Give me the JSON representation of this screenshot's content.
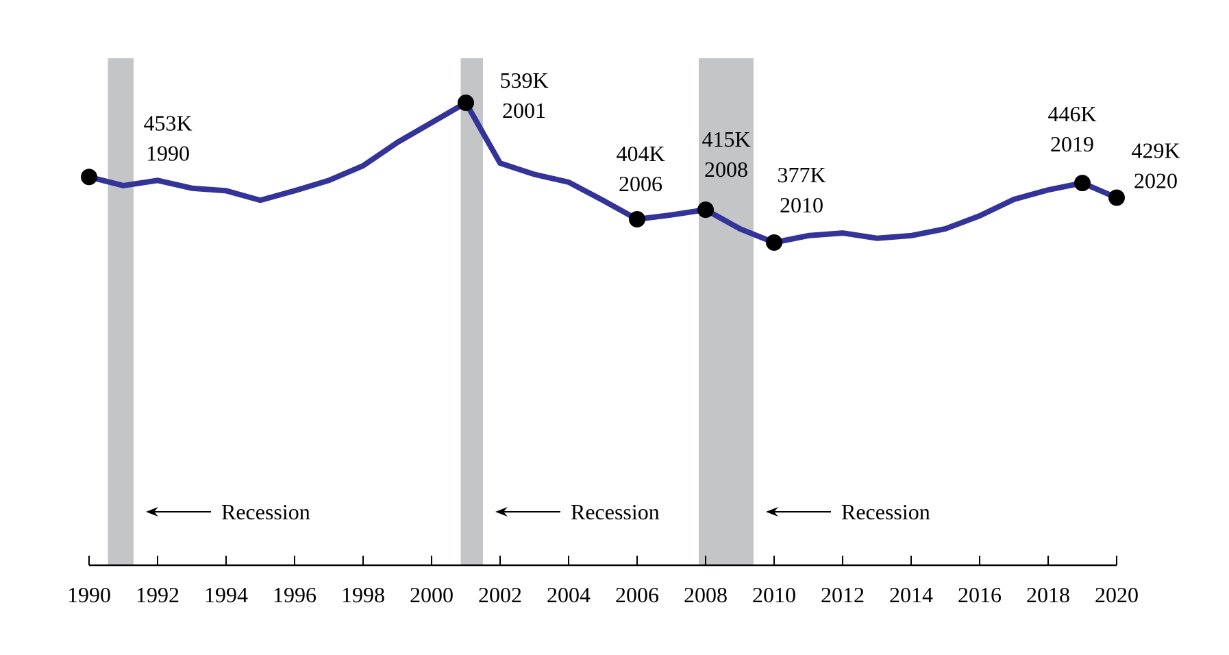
{
  "chart_data": {
    "type": "line",
    "title": "",
    "xlabel": "",
    "ylabel": "",
    "xlim": [
      1990,
      2020
    ],
    "ylim": [
      0,
      550
    ],
    "grid": false,
    "line_color": "#333399",
    "marker_color": "#000000",
    "recession_color": "#c4c5c7",
    "x_ticks": [
      1990,
      1992,
      1994,
      1996,
      1998,
      2000,
      2002,
      2004,
      2006,
      2008,
      2010,
      2012,
      2014,
      2016,
      2018,
      2020
    ],
    "x_tick_labels": [
      "1990",
      "1992",
      "1994",
      "1996",
      "1998",
      "2000",
      "2002",
      "2004",
      "2006",
      "2008",
      "2010",
      "2012",
      "2014",
      "2016",
      "2018",
      "2020"
    ],
    "series": [
      {
        "x": [
          1990,
          1991,
          1992,
          1993,
          1994,
          1995,
          1996,
          1997,
          1998,
          1999,
          2000,
          2001,
          2002,
          2003,
          2004,
          2005,
          2006,
          2007,
          2008,
          2009,
          2010,
          2011,
          2012,
          2013,
          2014,
          2015,
          2016,
          2017,
          2018,
          2019,
          2020
        ],
        "values": [
          453,
          443,
          449,
          440,
          437,
          426,
          437,
          449,
          466,
          493,
          516,
          539,
          469,
          456,
          447,
          426,
          404,
          409,
          415,
          393,
          377,
          385,
          388,
          382,
          385,
          393,
          408,
          427,
          438,
          446,
          429
        ]
      }
    ],
    "annotations": [
      {
        "x": 1990,
        "value_label": "453K",
        "year_label": "1990"
      },
      {
        "x": 2001,
        "value_label": "539K",
        "year_label": "2001"
      },
      {
        "x": 2006,
        "value_label": "404K",
        "year_label": "2006"
      },
      {
        "x": 2008,
        "value_label": "415K",
        "year_label": "2008"
      },
      {
        "x": 2010,
        "value_label": "377K",
        "year_label": "2010"
      },
      {
        "x": 2019,
        "value_label": "446K",
        "year_label": "2019"
      },
      {
        "x": 2020,
        "value_label": "429K",
        "year_label": "2020"
      }
    ],
    "recessions": [
      {
        "start": 1990.55,
        "end": 1991.3,
        "label": "Recession"
      },
      {
        "start": 2000.85,
        "end": 2001.5,
        "label": "Recession"
      },
      {
        "start": 2007.8,
        "end": 2009.4,
        "label": "Recession"
      }
    ]
  }
}
